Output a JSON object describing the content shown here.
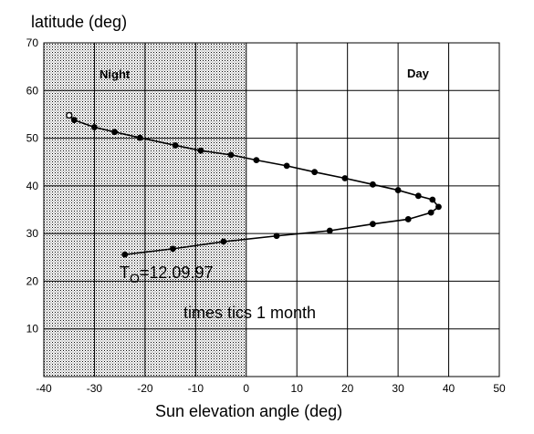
{
  "chart_data": {
    "type": "line",
    "title": "",
    "ylabel": "latitude (deg)",
    "xlabel": "Sun elevation angle (deg)",
    "xlim": [
      -40,
      50
    ],
    "ylim": [
      0,
      70
    ],
    "xticks": [
      -40,
      -30,
      -20,
      -10,
      0,
      10,
      20,
      30,
      40,
      50
    ],
    "yticks": [
      10,
      20,
      30,
      40,
      50,
      60,
      70
    ],
    "grid": true,
    "regions": [
      {
        "label": "Night",
        "x_range": [
          -40,
          0
        ],
        "shaded": true
      },
      {
        "label": "Day",
        "x_range": [
          0,
          50
        ],
        "shaded": false
      }
    ],
    "series": [
      {
        "points": [
          {
            "x": -35,
            "y": 54.8,
            "marker": "open"
          },
          {
            "x": -34,
            "y": 53.8
          },
          {
            "x": -30,
            "y": 52.3
          },
          {
            "x": -26,
            "y": 51.3
          },
          {
            "x": -21,
            "y": 50.1
          },
          {
            "x": -14,
            "y": 48.5
          },
          {
            "x": -9,
            "y": 47.4
          },
          {
            "x": -3,
            "y": 46.5
          },
          {
            "x": 2,
            "y": 45.4
          },
          {
            "x": 8,
            "y": 44.2
          },
          {
            "x": 13.5,
            "y": 42.9
          },
          {
            "x": 19.5,
            "y": 41.6
          },
          {
            "x": 25,
            "y": 40.3
          },
          {
            "x": 30,
            "y": 39.1
          },
          {
            "x": 34,
            "y": 37.9
          },
          {
            "x": 36.8,
            "y": 37.1
          },
          {
            "x": 38,
            "y": 35.6
          },
          {
            "x": 36.5,
            "y": 34.4
          },
          {
            "x": 32,
            "y": 33
          },
          {
            "x": 25,
            "y": 32
          },
          {
            "x": 16.5,
            "y": 30.6
          },
          {
            "x": 6,
            "y": 29.5
          },
          {
            "x": -4.5,
            "y": 28.3
          },
          {
            "x": -14.5,
            "y": 26.8
          },
          {
            "x": -24,
            "y": 25.6
          }
        ]
      }
    ],
    "annotations": {
      "t0_main": "T",
      "t0_sub": "O",
      "t0_value": "=12.09.97",
      "ticks_note": "times tics 1 month"
    }
  }
}
